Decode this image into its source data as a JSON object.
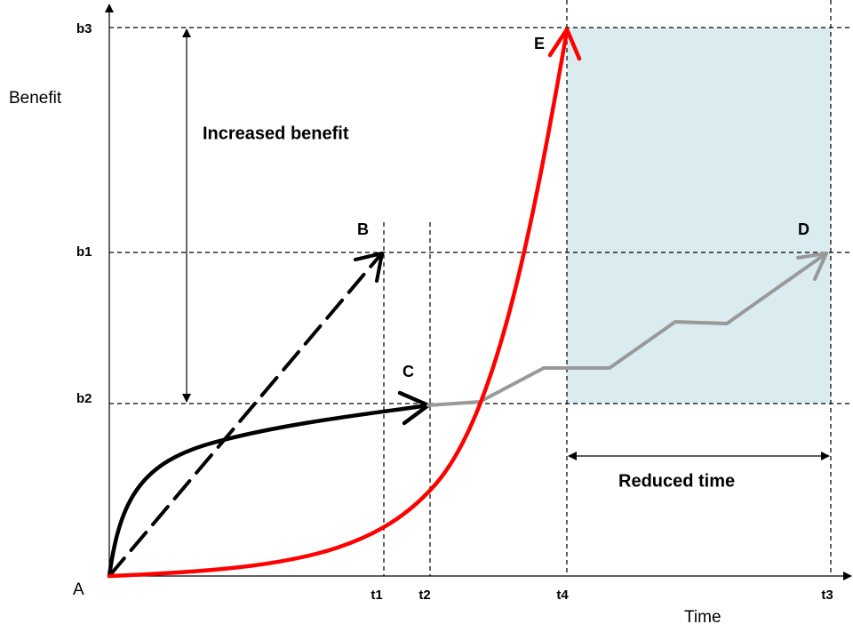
{
  "axes": {
    "y_label": "Benefit",
    "x_label": "Time"
  },
  "points": {
    "a": "A",
    "b": "B",
    "c": "C",
    "d": "D",
    "e": "E"
  },
  "y_levels": {
    "b1": "b1",
    "b2": "b2",
    "b3": "b3"
  },
  "x_levels": {
    "t1": "t1",
    "t2": "t2",
    "t3": "t3",
    "t4": "t4"
  },
  "annotations": {
    "increased": "Increased benefit",
    "reduced": "Reduced time"
  }
}
